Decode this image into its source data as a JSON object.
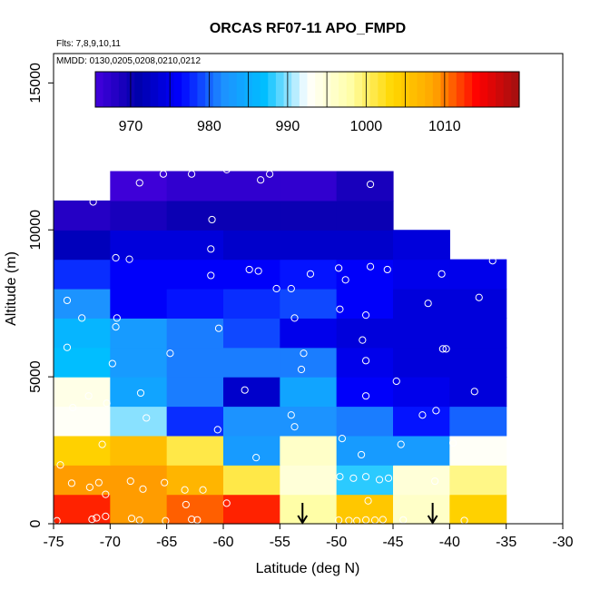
{
  "chart_data": {
    "type": "heatmap",
    "title": "ORCAS RF07-11 APO_FMPD",
    "annotations": [
      "Flts: 7,8,9,10,11",
      "MMDD: 0130,0205,0208,0210,0212"
    ],
    "xlabel": "Latitude (deg N)",
    "ylabel": "Altitude (m)",
    "xlim": [
      -75,
      -30
    ],
    "ylim": [
      0,
      16000
    ],
    "x_ticks": [
      "-75",
      "-70",
      "-65",
      "-60",
      "-55",
      "-50",
      "-45",
      "-40",
      "-35",
      "-30"
    ],
    "y_ticks": [
      "0",
      "5000",
      "10000",
      "15000"
    ],
    "colorbar": {
      "range": [
        965.5,
        1019.5
      ],
      "ticks": [
        "970",
        "980",
        "990",
        "1000",
        "1010"
      ],
      "palette": [
        "#4400dd",
        "#0000aa",
        "#0000ff",
        "#1e90ff",
        "#00bfff",
        "#ffffff",
        "#ffffaa",
        "#ffd700",
        "#ffa500",
        "#ff0000",
        "#a01010"
      ]
    },
    "lat_bins": [
      -75,
      -70,
      -65,
      -60,
      -55,
      -50,
      -45,
      -40,
      -35
    ],
    "alt_bins": [
      0,
      1000,
      2000,
      3000,
      4000,
      5000,
      6000,
      7000,
      8000,
      9000,
      10000,
      11000,
      12000
    ],
    "cells": [
      [
        1013,
        1009,
        1011,
        1013,
        998,
        1005,
        996,
        1004
      ],
      [
        1009,
        1009,
        1007,
        1001,
        995,
        988,
        995,
        999
      ],
      [
        1004,
        1006,
        1001,
        983,
        996,
        983,
        983,
        993
      ],
      [
        993,
        990,
        978,
        982,
        982,
        981,
        977,
        980
      ],
      [
        994,
        984,
        981,
        973,
        984,
        976,
        975,
        974
      ],
      [
        987,
        983,
        981,
        981,
        981,
        975,
        974,
        974
      ],
      [
        986,
        983,
        981,
        979,
        975,
        974,
        974,
        974
      ],
      [
        982,
        976,
        977,
        978,
        979,
        976,
        974,
        974
      ],
      [
        978,
        976,
        976,
        976,
        977,
        976,
        975,
        975
      ],
      [
        972,
        974,
        974,
        973,
        973,
        973,
        974,
        null
      ],
      [
        968,
        969,
        970,
        970,
        970,
        970,
        null,
        null
      ],
      [
        null,
        966,
        967,
        967,
        967,
        969,
        null,
        null
      ]
    ],
    "samples": [
      {
        "lat": -74.7,
        "alt": 100
      },
      {
        "lat": -71.6,
        "alt": 150
      },
      {
        "lat": -71.2,
        "alt": 200
      },
      {
        "lat": -70.4,
        "alt": 250
      },
      {
        "lat": -68.1,
        "alt": 180
      },
      {
        "lat": -67.4,
        "alt": 120
      },
      {
        "lat": -65.1,
        "alt": 100
      },
      {
        "lat": -62.8,
        "alt": 150
      },
      {
        "lat": -62.3,
        "alt": 130
      },
      {
        "lat": -63.3,
        "alt": 650
      },
      {
        "lat": -59.7,
        "alt": 700
      },
      {
        "lat": -49.8,
        "alt": 120
      },
      {
        "lat": -48.9,
        "alt": 110
      },
      {
        "lat": -48.2,
        "alt": 100
      },
      {
        "lat": -47.4,
        "alt": 130
      },
      {
        "lat": -46.6,
        "alt": 120
      },
      {
        "lat": -45.9,
        "alt": 140
      },
      {
        "lat": -44.1,
        "alt": 130
      },
      {
        "lat": -38.7,
        "alt": 110
      },
      {
        "lat": -47.2,
        "alt": 780
      },
      {
        "lat": -74.4,
        "alt": 2000
      },
      {
        "lat": -73.4,
        "alt": 1380
      },
      {
        "lat": -71.8,
        "alt": 1240
      },
      {
        "lat": -71.0,
        "alt": 1400
      },
      {
        "lat": -70.4,
        "alt": 1000
      },
      {
        "lat": -68.2,
        "alt": 1450
      },
      {
        "lat": -67.1,
        "alt": 1180
      },
      {
        "lat": -65.2,
        "alt": 1400
      },
      {
        "lat": -63.4,
        "alt": 1150
      },
      {
        "lat": -61.8,
        "alt": 1150
      },
      {
        "lat": -49.7,
        "alt": 1600
      },
      {
        "lat": -48.5,
        "alt": 1550
      },
      {
        "lat": -47.4,
        "alt": 1600
      },
      {
        "lat": -46.2,
        "alt": 1500
      },
      {
        "lat": -45.4,
        "alt": 1550
      },
      {
        "lat": -41.3,
        "alt": 1450
      },
      {
        "lat": -57.1,
        "alt": 2250
      },
      {
        "lat": -47.8,
        "alt": 2350
      },
      {
        "lat": -70.7,
        "alt": 2700
      },
      {
        "lat": -49.5,
        "alt": 2900
      },
      {
        "lat": -44.3,
        "alt": 2700
      },
      {
        "lat": -39.7,
        "alt": 2750
      },
      {
        "lat": -60.5,
        "alt": 3200
      },
      {
        "lat": -53.7,
        "alt": 3300
      },
      {
        "lat": -66.8,
        "alt": 3600
      },
      {
        "lat": -54.0,
        "alt": 3700
      },
      {
        "lat": -42.4,
        "alt": 3700
      },
      {
        "lat": -70.3,
        "alt": 4100
      },
      {
        "lat": -73.3,
        "alt": 3950
      },
      {
        "lat": -71.9,
        "alt": 4350
      },
      {
        "lat": -67.3,
        "alt": 4450
      },
      {
        "lat": -58.1,
        "alt": 4550
      },
      {
        "lat": -47.4,
        "alt": 4350
      },
      {
        "lat": -44.7,
        "alt": 4850
      },
      {
        "lat": -41.2,
        "alt": 3850
      },
      {
        "lat": -37.8,
        "alt": 4500
      },
      {
        "lat": -69.8,
        "alt": 5450
      },
      {
        "lat": -64.7,
        "alt": 5800
      },
      {
        "lat": -53.1,
        "alt": 5250
      },
      {
        "lat": -52.9,
        "alt": 5800
      },
      {
        "lat": -47.4,
        "alt": 5550
      },
      {
        "lat": -40.6,
        "alt": 5950
      },
      {
        "lat": -40.3,
        "alt": 5950
      },
      {
        "lat": -73.8,
        "alt": 6000
      },
      {
        "lat": -47.7,
        "alt": 6250
      },
      {
        "lat": -60.4,
        "alt": 6650
      },
      {
        "lat": -69.5,
        "alt": 6700
      },
      {
        "lat": -69.4,
        "alt": 7000
      },
      {
        "lat": -72.5,
        "alt": 7000
      },
      {
        "lat": -53.7,
        "alt": 7000
      },
      {
        "lat": -73.8,
        "alt": 7600
      },
      {
        "lat": -49.7,
        "alt": 7300
      },
      {
        "lat": -47.4,
        "alt": 7100
      },
      {
        "lat": -41.9,
        "alt": 7500
      },
      {
        "lat": -37.4,
        "alt": 7700
      },
      {
        "lat": -55.3,
        "alt": 8000
      },
      {
        "lat": -54.0,
        "alt": 8000
      },
      {
        "lat": -57.7,
        "alt": 8650
      },
      {
        "lat": -56.9,
        "alt": 8600
      },
      {
        "lat": -52.3,
        "alt": 8500
      },
      {
        "lat": -49.8,
        "alt": 8700
      },
      {
        "lat": -49.2,
        "alt": 8300
      },
      {
        "lat": -47.0,
        "alt": 8750
      },
      {
        "lat": -45.5,
        "alt": 8650
      },
      {
        "lat": -40.7,
        "alt": 8500
      },
      {
        "lat": -61.1,
        "alt": 8450
      },
      {
        "lat": -61.1,
        "alt": 9350
      },
      {
        "lat": -69.5,
        "alt": 9050
      },
      {
        "lat": -68.3,
        "alt": 9000
      },
      {
        "lat": -36.2,
        "alt": 8950
      },
      {
        "lat": -61.0,
        "alt": 10350
      },
      {
        "lat": -71.5,
        "alt": 10950
      },
      {
        "lat": -67.4,
        "alt": 11600
      },
      {
        "lat": -65.3,
        "alt": 11900
      },
      {
        "lat": -62.8,
        "alt": 11900
      },
      {
        "lat": -59.7,
        "alt": 12050
      },
      {
        "lat": -56.7,
        "alt": 11700
      },
      {
        "lat": -55.9,
        "alt": 11900
      },
      {
        "lat": -47.0,
        "alt": 11550
      }
    ],
    "markers": [
      {
        "lat": -53.0,
        "alt": 0
      },
      {
        "lat": -41.5,
        "alt": 0
      }
    ]
  }
}
